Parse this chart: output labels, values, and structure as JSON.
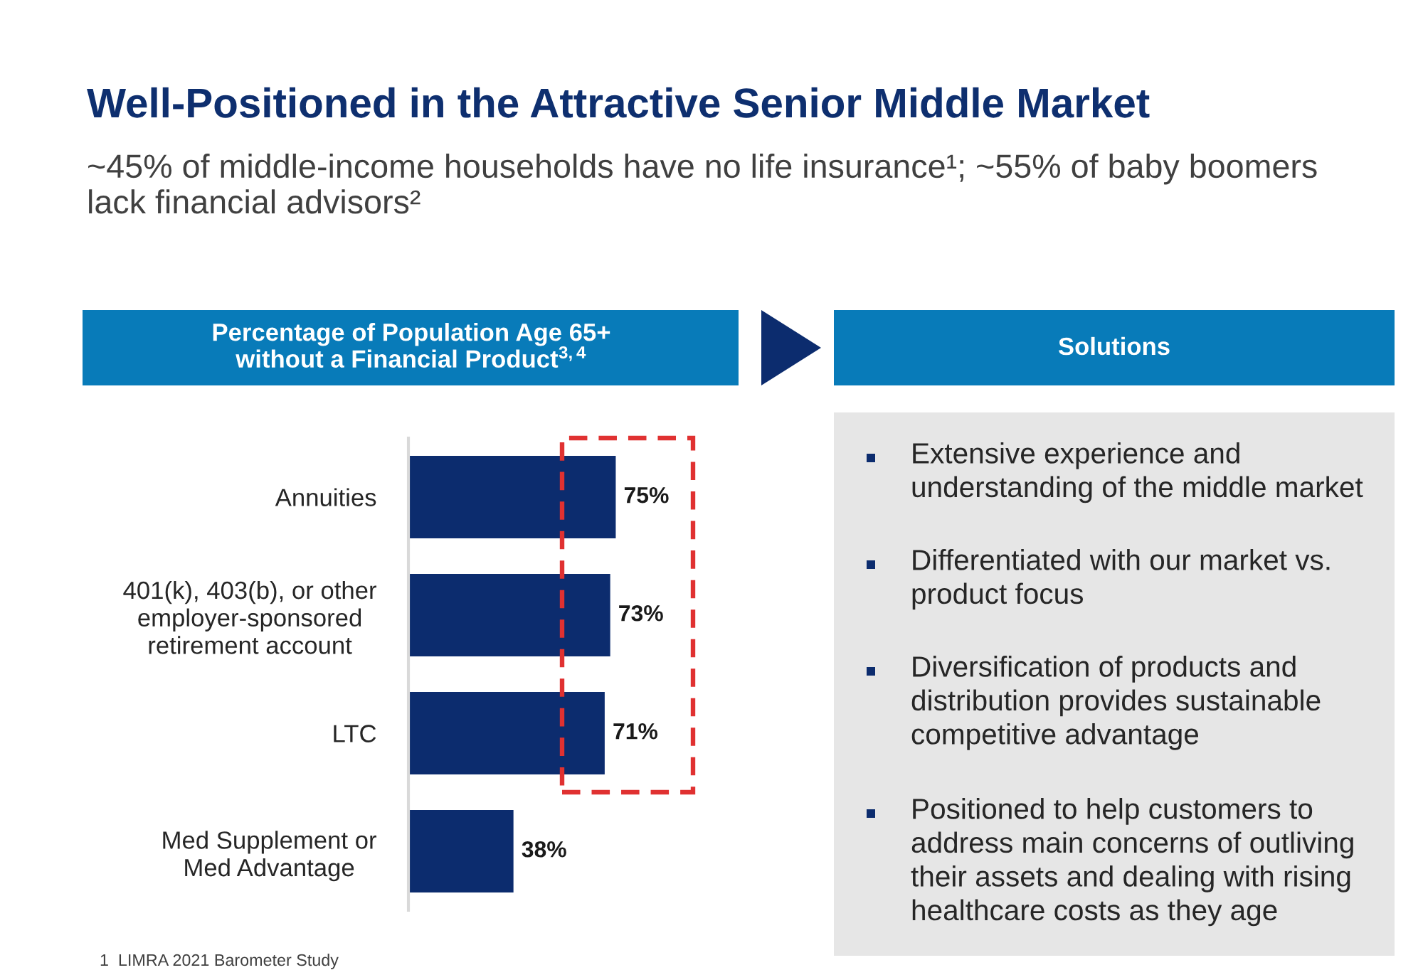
{
  "chart_data": [
    {
      "type": "other",
      "title": "Well-Positioned in the Attractive Senior Middle Market",
      "subtitle": "~45% of middle-income households have no life insurance¹; ~55% of baby boomers\nlack financial advisors²"
    },
    {
      "type": "bar",
      "orientation": "horizontal",
      "title": "Percentage of Population Age 65+\nwithout a Financial Product$^{3,4}$",
      "categories": [
        "Annuities",
        "401(k), 403(b), or other\nemployer-sponsored\nretirement account",
        "LTC",
        "Med Supplement or\nMed Advantage"
      ],
      "values": [
        75,
        73,
        71,
        38
      ],
      "color": "#0c2c6e",
      "value_labels": [
        "75%",
        "73%",
        "71%",
        "38%"
      ],
      "tick_labels": "y",
      "annotations": [
        "1  LIMRA 2021 Barometer Study"
      ]
    },
    {
      "type": "other",
      "title": "Solutions",
      "annotations": [
        "Extensive experience and\nunderstanding of the middle market",
        "Differentiated with our market vs.\nproduct focus",
        "Diversification of products and\ndistribution provides sustainable\ncompetitive advantage",
        "Positioned to help customers to\naddress main concerns of outliving\ntheir assets and dealing with rising\nhealthcare costs as they age"
      ]
    }
  ]
}
